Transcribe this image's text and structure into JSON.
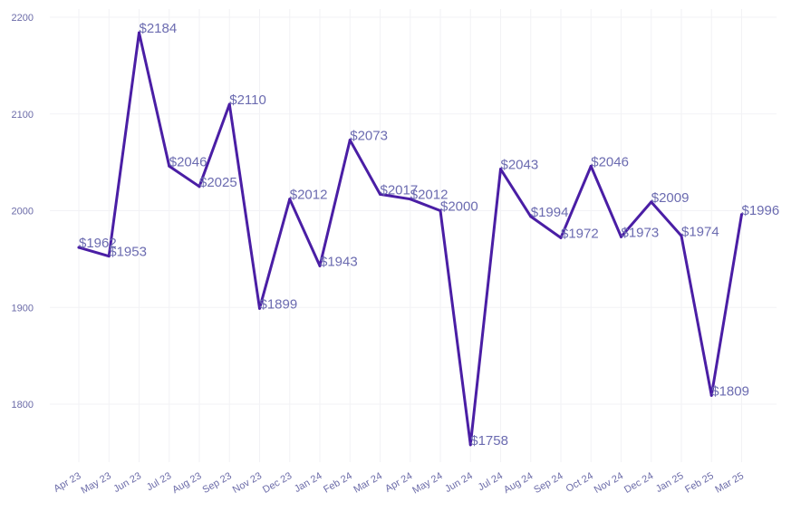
{
  "chart_data": {
    "type": "line",
    "title": "",
    "xlabel": "",
    "ylabel": "",
    "categories": [
      "Apr 23",
      "May 23",
      "Jun 23",
      "Jul 23",
      "Aug 23",
      "Sep 23",
      "Nov 23",
      "Dec 23",
      "Jan 24",
      "Feb 24",
      "Mar 24",
      "Apr 24",
      "May 24",
      "Jun 24",
      "Jul 24",
      "Aug 24",
      "Sep 24",
      "Oct 24",
      "Nov 24",
      "Dec 24",
      "Jan 25",
      "Feb 25",
      "Mar 25"
    ],
    "values": [
      1962,
      1953,
      2184,
      2046,
      2025,
      2110,
      1899,
      2012,
      1943,
      2073,
      2017,
      2012,
      2000,
      1758,
      2043,
      1994,
      1972,
      2046,
      1973,
      2009,
      1974,
      1809,
      1996
    ],
    "data_labels": [
      "$1962",
      "$1953",
      "$2184",
      "$2046",
      "$2025",
      "$2110",
      "$1899",
      "$2012",
      "$1943",
      "$2073",
      "$2017",
      "$2012",
      "$2000",
      "$1758",
      "$2043",
      "$1994",
      "$1972",
      "$2046",
      "$1973",
      "$2009",
      "$1974",
      "$1809",
      "$1996"
    ],
    "yticks": [
      1800,
      1900,
      2000,
      2100,
      2200
    ],
    "ylim": [
      1742,
      2210
    ],
    "grid": true,
    "line_color": "#4a1ea5",
    "label_color": "#6b6bb0",
    "tick_color": "#6b6ba8"
  }
}
